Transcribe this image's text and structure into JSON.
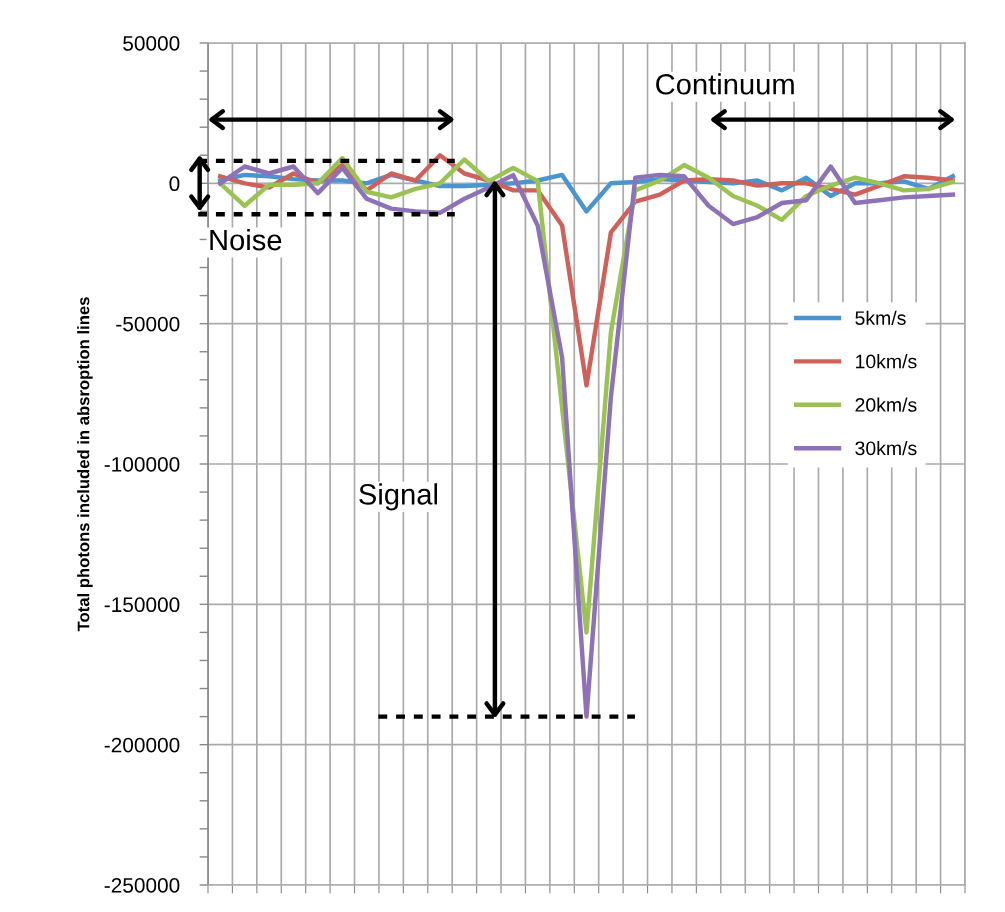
{
  "chart_data": {
    "type": "line",
    "ylabel": "Total photons included in absroption lines",
    "categories": [
      null,
      null,
      null,
      null,
      null,
      null,
      null,
      null,
      null,
      null,
      null,
      null,
      null,
      null,
      null,
      null,
      null,
      null,
      null,
      null,
      null,
      null,
      null,
      null,
      null,
      null,
      null,
      null,
      null,
      null,
      null
    ],
    "series": [
      {
        "name": "5km/s",
        "color": "#4a94d0",
        "values": [
          1000,
          3000,
          2500,
          1500,
          1000,
          1000,
          0,
          3000,
          1000,
          -1000,
          -1000,
          -500,
          0,
          1000,
          3000,
          -10000,
          0,
          500,
          1500,
          1000,
          500,
          0,
          1000,
          -2500,
          2000,
          -4500,
          0,
          0,
          700,
          -2000,
          2500
        ]
      },
      {
        "name": "10km/s",
        "color": "#d0605a",
        "values": [
          2500,
          0,
          -1500,
          3500,
          0,
          6500,
          -2500,
          3500,
          1000,
          10000,
          3500,
          1000,
          -2500,
          -2500,
          -15000,
          -72000,
          -17500,
          -6500,
          -4000,
          1000,
          1500,
          1000,
          -800,
          0,
          0,
          -2000,
          -4000,
          -800,
          2500,
          2000,
          1000
        ]
      },
      {
        "name": "20km/s",
        "color": "#9ac354",
        "values": [
          0,
          -8000,
          -500,
          -500,
          0,
          9000,
          -3000,
          -5000,
          -2000,
          0,
          8500,
          800,
          5500,
          800,
          -80000,
          -160000,
          -53000,
          -2500,
          1000,
          6500,
          2000,
          -4500,
          -8000,
          -13000,
          -4500,
          -800,
          2000,
          0,
          -2500,
          -2000,
          500
        ]
      },
      {
        "name": "30km/s",
        "color": "#8e72b8",
        "values": [
          0,
          6000,
          3500,
          6000,
          -3500,
          5500,
          -5500,
          -9000,
          -10000,
          -10500,
          -5500,
          -1500,
          2900,
          -15000,
          -62000,
          -190000,
          -76000,
          2000,
          3000,
          2500,
          -8000,
          -14500,
          -12000,
          -7000,
          -6000,
          6000,
          -7000,
          -6000,
          -5000,
          -4500,
          -4000
        ]
      }
    ],
    "ylim": [
      -250000,
      50000
    ],
    "yticks": [
      -250000,
      -200000,
      -150000,
      -100000,
      -50000,
      0,
      50000
    ],
    "grid": true,
    "legend": "right",
    "marker": "none",
    "line_style": "solid",
    "ref_lines": [
      {
        "axis": "y",
        "value": 8000,
        "color": "#000000",
        "line_style": "dotted"
      },
      {
        "axis": "y",
        "value": -11000,
        "color": "#000000",
        "line_style": "dotted"
      },
      {
        "axis": "y",
        "value": -190000,
        "color": "#000000",
        "line_style": "dotted"
      }
    ],
    "annotations": [
      "Noise",
      "Signal",
      "Continuum"
    ]
  }
}
